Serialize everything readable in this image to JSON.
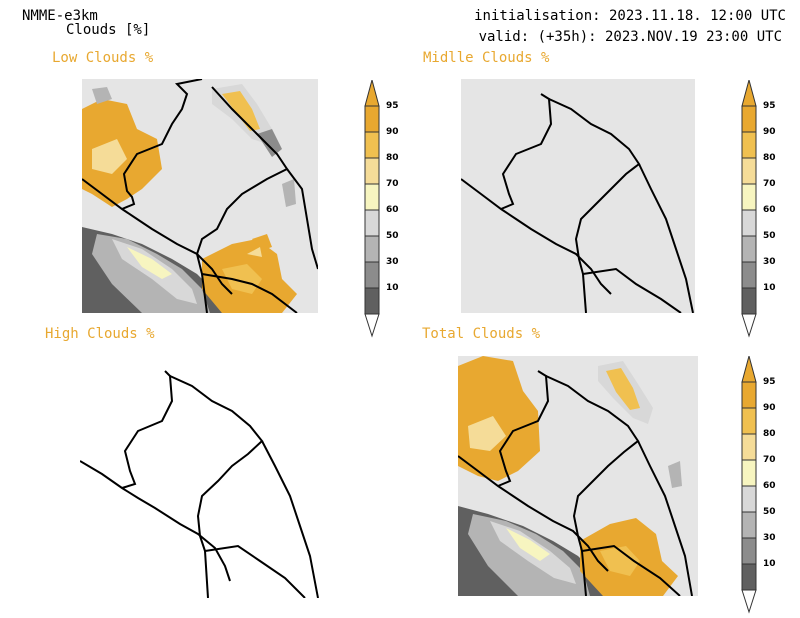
{
  "header": {
    "model": "NMME-e3km",
    "variable": "Clouds [%]",
    "init": "initialisation: 2023.11.18. 12:00 UTC",
    "valid": "valid: (+35h): 2023.NOV.19 23:00 UTC"
  },
  "panels": [
    {
      "title": "Low Clouds %"
    },
    {
      "title": "Midlle Clouds %"
    },
    {
      "title": "High Clouds %"
    },
    {
      "title": "Total Clouds %"
    }
  ],
  "colorbar": {
    "ticks": [
      "95",
      "90",
      "80",
      "70",
      "60",
      "50",
      "30",
      "10"
    ],
    "colors": {
      "c95": "#e8a830",
      "c90": "#f0c050",
      "c80": "#f5dc98",
      "c70": "#f7f5c0",
      "c60": "#d8d8d8",
      "c50": "#b4b4b4",
      "c30": "#8c8c8c",
      "c10": "#606060",
      "below": "#ffffff",
      "background": "#e5e5e5",
      "title": "#e8a830"
    }
  }
}
